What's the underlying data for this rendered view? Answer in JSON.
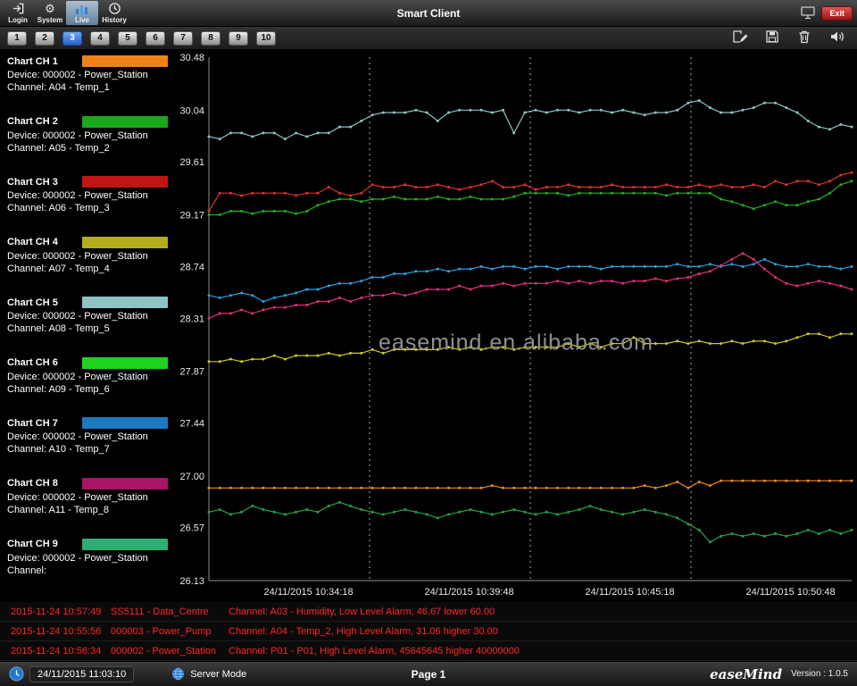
{
  "header": {
    "title": "Smart Client",
    "nav": [
      {
        "label": "Login",
        "icon": "login-icon"
      },
      {
        "label": "System",
        "icon": "gear-icon"
      },
      {
        "label": "Live",
        "icon": "chart-bars-icon",
        "active": true
      },
      {
        "label": "History",
        "icon": "history-clock-icon"
      }
    ],
    "exit_label": "Exit"
  },
  "tabs": {
    "items": [
      "1",
      "2",
      "3",
      "4",
      "5",
      "6",
      "7",
      "8",
      "9",
      "10"
    ],
    "active": "3",
    "active_color": "#2f6fd6"
  },
  "toolbar": {
    "tools": [
      {
        "name": "edit",
        "icon": "edit-icon"
      },
      {
        "name": "save",
        "icon": "save-icon"
      },
      {
        "name": "delete",
        "icon": "trash-icon"
      },
      {
        "name": "audio",
        "icon": "speaker-icon"
      }
    ]
  },
  "sidebar": {
    "channels": [
      {
        "title": "Chart CH 1",
        "color": "#ef8318",
        "device": "Device: 000002 - Power_Station",
        "channel": "Channel: A04 - Temp_1"
      },
      {
        "title": "Chart CH 2",
        "color": "#1ca81c",
        "device": "Device: 000002 - Power_Station",
        "channel": "Channel: A05 - Temp_2"
      },
      {
        "title": "Chart CH 3",
        "color": "#c01515",
        "device": "Device: 000002 - Power_Station",
        "channel": "Channel: A06 - Temp_3"
      },
      {
        "title": "Chart CH 4",
        "color": "#b5ab1f",
        "device": "Device: 000002 - Power_Station",
        "channel": "Channel: A07 - Temp_4"
      },
      {
        "title": "Chart CH 5",
        "color": "#8fc3c3",
        "device": "Device: 000002 - Power_Station",
        "channel": "Channel: A08 - Temp_5"
      },
      {
        "title": "Chart CH 6",
        "color": "#1ed41e",
        "device": "Device: 000002 - Power_Station",
        "channel": "Channel: A09 - Temp_6"
      },
      {
        "title": "Chart CH 7",
        "color": "#1b79c0",
        "device": "Device: 000002 - Power_Station",
        "channel": "Channel: A10 - Temp_7"
      },
      {
        "title": "Chart CH 8",
        "color": "#a81566",
        "device": "Device: 000002 - Power_Station",
        "channel": "Channel: A11 - Temp_8"
      },
      {
        "title": "Chart CH 9",
        "color": "#2fae74",
        "device": "Device: 000002 - Power_Station",
        "channel": "Channel:"
      }
    ]
  },
  "watermark": "easemind.en.alibaba.com",
  "chart_data": {
    "type": "line",
    "ylim": [
      26.13,
      30.48
    ],
    "ytick_labels": [
      "26.13",
      "26.57",
      "27.00",
      "27.44",
      "27.87",
      "28.31",
      "28.74",
      "29.17",
      "29.61",
      "30.04",
      "30.48"
    ],
    "xtick_labels": [
      "24/11/2015 10:34:18",
      "24/11/2015 10:39:48",
      "24/11/2015 10:45:18",
      "24/11/2015 10:50:48"
    ],
    "grid": "vertical-dashed",
    "legend_position": "left-sidebar",
    "series": [
      {
        "name": "CH 5 - A08 Temp_5",
        "color": "#8fc3c3",
        "values": [
          29.82,
          29.8,
          29.85,
          29.85,
          29.82,
          29.85,
          29.85,
          29.8,
          29.85,
          29.82,
          29.85,
          29.85,
          29.9,
          29.9,
          29.95,
          30.0,
          30.02,
          30.02,
          30.02,
          30.04,
          30.02,
          29.95,
          30.02,
          30.04,
          30.04,
          30.04,
          30.02,
          30.04,
          29.85,
          30.02,
          30.04,
          30.02,
          30.04,
          30.04,
          30.02,
          30.04,
          30.04,
          30.02,
          30.04,
          30.02,
          30.0,
          30.02,
          30.02,
          30.04,
          30.1,
          30.12,
          30.06,
          30.02,
          30.02,
          30.04,
          30.06,
          30.1,
          30.1,
          30.06,
          30.02,
          29.95,
          29.9,
          29.88,
          29.92,
          29.9
        ]
      },
      {
        "name": "CH 3 - A06 Temp_3",
        "color": "#e03030",
        "values": [
          29.2,
          29.35,
          29.35,
          29.33,
          29.35,
          29.35,
          29.35,
          29.35,
          29.33,
          29.35,
          29.35,
          29.4,
          29.35,
          29.33,
          29.35,
          29.42,
          29.4,
          29.4,
          29.42,
          29.4,
          29.4,
          29.42,
          29.4,
          29.38,
          29.4,
          29.42,
          29.45,
          29.4,
          29.4,
          29.42,
          29.38,
          29.4,
          29.4,
          29.42,
          29.4,
          29.4,
          29.4,
          29.42,
          29.4,
          29.4,
          29.4,
          29.4,
          29.42,
          29.4,
          29.4,
          29.42,
          29.4,
          29.42,
          29.4,
          29.4,
          29.42,
          29.4,
          29.45,
          29.42,
          29.45,
          29.45,
          29.42,
          29.45,
          29.5,
          29.52
        ]
      },
      {
        "name": "CH 2 - A05 Temp_2",
        "color": "#22b022",
        "values": [
          29.17,
          29.17,
          29.2,
          29.2,
          29.18,
          29.2,
          29.2,
          29.2,
          29.18,
          29.2,
          29.25,
          29.28,
          29.3,
          29.3,
          29.28,
          29.3,
          29.3,
          29.32,
          29.3,
          29.3,
          29.3,
          29.32,
          29.3,
          29.3,
          29.32,
          29.3,
          29.3,
          29.3,
          29.32,
          29.35,
          29.35,
          29.35,
          29.35,
          29.33,
          29.35,
          29.35,
          29.35,
          29.35,
          29.35,
          29.35,
          29.35,
          29.35,
          29.33,
          29.35,
          29.35,
          29.35,
          29.35,
          29.3,
          29.28,
          29.25,
          29.22,
          29.25,
          29.28,
          29.25,
          29.25,
          29.28,
          29.3,
          29.35,
          29.42,
          29.45
        ]
      },
      {
        "name": "CH 7 - A10 Temp_7",
        "color": "#2f9fe0",
        "values": [
          28.5,
          28.48,
          28.5,
          28.52,
          28.5,
          28.45,
          28.48,
          28.5,
          28.52,
          28.55,
          28.55,
          28.58,
          28.6,
          28.6,
          28.62,
          28.65,
          28.65,
          28.68,
          28.68,
          28.7,
          28.7,
          28.72,
          28.7,
          28.72,
          28.72,
          28.74,
          28.72,
          28.74,
          28.74,
          28.72,
          28.74,
          28.74,
          28.72,
          28.74,
          28.74,
          28.74,
          28.72,
          28.74,
          28.74,
          28.74,
          28.74,
          28.74,
          28.74,
          28.76,
          28.74,
          28.74,
          28.76,
          28.74,
          28.76,
          28.74,
          28.76,
          28.8,
          28.76,
          28.74,
          28.74,
          28.76,
          28.74,
          28.74,
          28.72,
          28.74
        ]
      },
      {
        "name": "CH 8 - A11 Temp_8",
        "color": "#e0307a",
        "values": [
          28.31,
          28.35,
          28.35,
          28.38,
          28.35,
          28.38,
          28.4,
          28.4,
          28.42,
          28.42,
          28.45,
          28.45,
          28.48,
          28.45,
          28.48,
          28.5,
          28.5,
          28.52,
          28.5,
          28.52,
          28.55,
          28.55,
          28.55,
          28.58,
          28.55,
          28.58,
          28.58,
          28.6,
          28.58,
          28.6,
          28.6,
          28.6,
          28.62,
          28.6,
          28.62,
          28.6,
          28.62,
          28.62,
          28.6,
          28.62,
          28.62,
          28.64,
          28.62,
          28.64,
          28.65,
          28.68,
          28.7,
          28.75,
          28.8,
          28.85,
          28.8,
          28.72,
          28.65,
          28.6,
          28.58,
          28.6,
          28.62,
          28.6,
          28.58,
          28.55
        ]
      },
      {
        "name": "CH 4 - A07 Temp_4",
        "color": "#c9c929",
        "values": [
          27.95,
          27.95,
          27.97,
          27.95,
          27.97,
          27.97,
          28.0,
          27.97,
          28.0,
          28.0,
          28.0,
          28.02,
          28.0,
          28.02,
          28.02,
          28.05,
          28.02,
          28.05,
          28.05,
          28.05,
          28.05,
          28.05,
          28.07,
          28.05,
          28.07,
          28.05,
          28.07,
          28.07,
          28.05,
          28.07,
          28.07,
          28.07,
          28.07,
          28.1,
          28.07,
          28.1,
          28.07,
          28.1,
          28.1,
          28.15,
          28.1,
          28.1,
          28.1,
          28.12,
          28.1,
          28.12,
          28.1,
          28.1,
          28.12,
          28.1,
          28.12,
          28.12,
          28.1,
          28.12,
          28.15,
          28.18,
          28.18,
          28.15,
          28.18,
          28.18
        ]
      },
      {
        "name": "CH 1 - A04 Temp_1",
        "color": "#f08a1e",
        "values": [
          26.9,
          26.9,
          26.9,
          26.9,
          26.9,
          26.9,
          26.9,
          26.9,
          26.9,
          26.9,
          26.9,
          26.9,
          26.9,
          26.9,
          26.9,
          26.9,
          26.9,
          26.9,
          26.9,
          26.9,
          26.9,
          26.9,
          26.9,
          26.9,
          26.9,
          26.9,
          26.92,
          26.9,
          26.9,
          26.9,
          26.9,
          26.9,
          26.9,
          26.9,
          26.9,
          26.9,
          26.9,
          26.9,
          26.9,
          26.9,
          26.92,
          26.9,
          26.92,
          26.95,
          26.9,
          26.95,
          26.92,
          26.96,
          26.96,
          26.96,
          26.96,
          26.96,
          26.96,
          26.96,
          26.96,
          26.96,
          26.96,
          26.96,
          26.96,
          26.96
        ]
      },
      {
        "name": "CH 6 - A09 Temp_6",
        "color": "#28a046",
        "values": [
          26.7,
          26.72,
          26.68,
          26.7,
          26.75,
          26.72,
          26.7,
          26.68,
          26.7,
          26.72,
          26.7,
          26.75,
          26.78,
          26.75,
          26.72,
          26.7,
          26.68,
          26.7,
          26.72,
          26.7,
          26.68,
          26.65,
          26.68,
          26.7,
          26.72,
          26.7,
          26.68,
          26.7,
          26.72,
          26.7,
          26.68,
          26.7,
          26.68,
          26.7,
          26.72,
          26.75,
          26.72,
          26.7,
          26.68,
          26.7,
          26.72,
          26.7,
          26.68,
          26.65,
          26.6,
          26.55,
          26.45,
          26.5,
          26.52,
          26.5,
          26.52,
          26.5,
          26.52,
          26.5,
          26.52,
          26.55,
          26.52,
          26.55,
          26.52,
          26.55
        ]
      }
    ]
  },
  "alarms": [
    {
      "time": "2015-11-24 10:57:49",
      "device": "SS5111 - Data_Centre",
      "message": "Channel: A03 - Humidity, Low Level Alarm, 46.67 lower 60.00"
    },
    {
      "time": "2015-11-24 10:55:56",
      "device": "000003 - Power_Pump",
      "message": "Channel: A04 - Temp_2, High Level Alarm, 31.06 higher 30.00"
    },
    {
      "time": "2015-11-24 10:56:34",
      "device": "000002 - Power_Station",
      "message": "Channel: P01 - P01, High Level Alarm, 45645645 higher 40000000"
    }
  ],
  "statusbar": {
    "datetime": "24/11/2015 11:03:10",
    "mode": "Server Mode",
    "page": "Page 1",
    "brand": "easeMind",
    "version": "Version : 1.0.5"
  }
}
